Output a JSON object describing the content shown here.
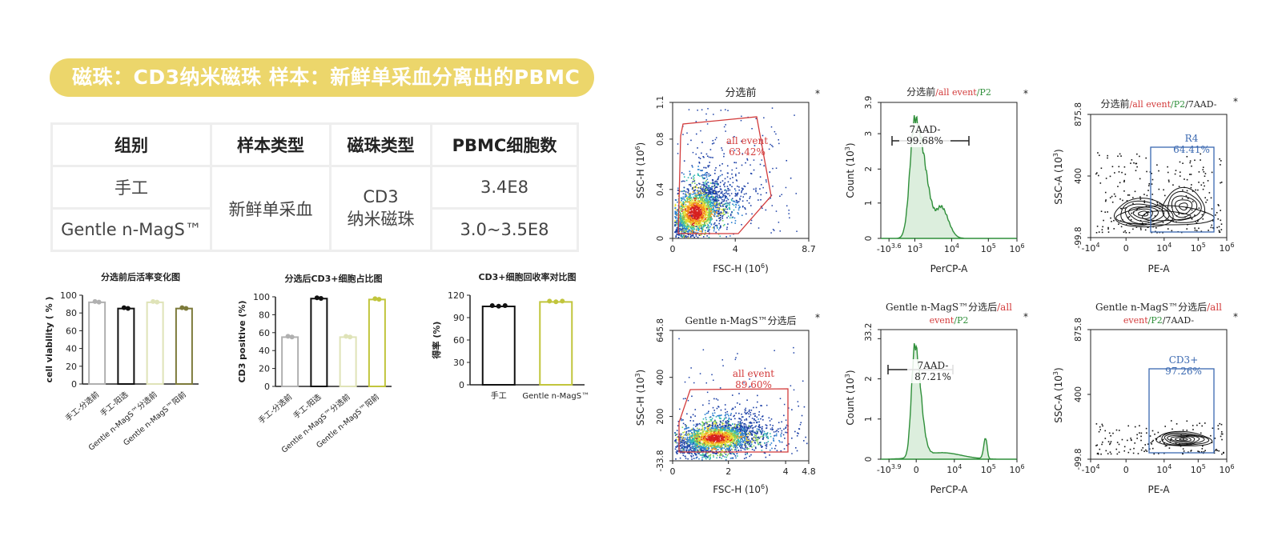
{
  "banner": {
    "text": "磁珠：CD3纳米磁珠   样本：新鲜单采血分离出的PBMC"
  },
  "table": {
    "headers": [
      "组别",
      "样本类型",
      "磁珠类型",
      "PBMC细胞数"
    ],
    "row1_group": "手工",
    "row2_group": "Gentle n-MagS™",
    "sample_type": "新鲜单采血",
    "bead_type_line1": "CD3",
    "bead_type_line2": "纳米磁珠",
    "row1_count": "3.4E8",
    "row2_count": "3.0~3.5E8"
  },
  "colors": {
    "banner": "#ecd66b",
    "red_gate": "#d33b3b",
    "blue_gate": "#3a68b0",
    "green_hist": "#2f8f3a",
    "green_fill": "#dceedd"
  },
  "chart_data": [
    {
      "type": "bar",
      "title": "分选前后活率变化图",
      "ylabel": "cell viability ( % )",
      "ylim": [
        0,
        100
      ],
      "yticks": [
        "0",
        "20",
        "40",
        "60",
        "80",
        "100"
      ],
      "categories": [
        "手工-分选前",
        "手工-阳选",
        "Gentle n-MagS™分选前",
        "Gentle n-MagS™阳前"
      ],
      "values": [
        92,
        85,
        92,
        85
      ],
      "colors": [
        "#b0b0b0",
        "#111111",
        "#dfe3b8",
        "#7c7a3a"
      ]
    },
    {
      "type": "bar",
      "title": "分选后CD3+细胞占比图",
      "ylabel": "CD3 positive (%)",
      "ylim": [
        0,
        100
      ],
      "yticks": [
        "0",
        "20",
        "40",
        "60",
        "80",
        "100"
      ],
      "categories": [
        "手工-分选前",
        "手工-阳选",
        "Gentle n-MagS™分选前",
        "Gentle n-MagS™阳前"
      ],
      "values": [
        55,
        98,
        55,
        97
      ],
      "colors": [
        "#b0b0b0",
        "#111111",
        "#dfe3b8",
        "#c1c53c"
      ]
    },
    {
      "type": "bar",
      "title": "CD3+细胞回收率对比图",
      "ylabel": "得率 (%)",
      "ylim": [
        0,
        120
      ],
      "yticks": [
        "0",
        "30",
        "60",
        "90",
        "120"
      ],
      "categories": [
        "手工",
        "Gentle n-MagS™"
      ],
      "values": [
        105,
        111
      ],
      "colors": [
        "#111111",
        "#c1c53c"
      ]
    },
    {
      "type": "scatter",
      "title": "分选前",
      "xlabel": "FSC-H (10^6)",
      "ylabel": "SSC-H (10^6)",
      "xticks": [
        "0",
        "4",
        "8.7"
      ],
      "yticks": [
        "0",
        "0.4",
        "0.8",
        "1.1"
      ],
      "gate_label": "all event",
      "gate_value": "63.42%"
    },
    {
      "type": "area",
      "title_parts": [
        "分选前",
        "/all event",
        "/P2"
      ],
      "xlabel": "PerCP-A",
      "ylabel": "Count (10^3)",
      "xticks": [
        "-10^3.6",
        "10^3",
        "10^4",
        "10^5",
        "10^6"
      ],
      "yticks": [
        "0",
        "1",
        "2",
        "3",
        "3.9"
      ],
      "gate_label": "7AAD-",
      "gate_value": "99.68%"
    },
    {
      "type": "scatter",
      "title_parts": [
        "分选前",
        "/all event",
        "/P2",
        "/7AAD-"
      ],
      "xlabel": "PE-A",
      "ylabel": "SSC-A (10^3)",
      "xticks": [
        "-10^4",
        "0",
        "10^4",
        "10^5",
        "10^6"
      ],
      "yticks": [
        "-99.8",
        "400",
        "875.8"
      ],
      "gate_label": "R4",
      "gate_value": "64.41%"
    },
    {
      "type": "scatter",
      "title": "Gentle n-MagS™分选后",
      "xlabel": "FSC-H (10^6)",
      "ylabel": "SSC-H (10^3)",
      "xticks": [
        "0",
        "2",
        "4",
        "4.8"
      ],
      "yticks": [
        "-33.8",
        "200",
        "400",
        "645.8"
      ],
      "gate_label": "all event",
      "gate_value": "89.60%"
    },
    {
      "type": "area",
      "title_parts": [
        "Gentle n-MagS™分选后",
        "/all",
        "event",
        "/P2"
      ],
      "xlabel": "PerCP-A",
      "ylabel": "Count (10^3)",
      "xticks": [
        "-10^3.9",
        "0",
        "10^4",
        "10^5",
        "10^6"
      ],
      "yticks": [
        "0",
        "1",
        "2",
        "3",
        "3.2"
      ],
      "gate_label": "7AAD-",
      "gate_value": "87.21%"
    },
    {
      "type": "scatter",
      "title_parts": [
        "Gentle n-MagS™分选后",
        "/all",
        "event",
        "/P2",
        "/7AAD-"
      ],
      "xlabel": "PE-A",
      "ylabel": "SSC-A (10^3)",
      "xticks": [
        "-10^4",
        "0",
        "10^4",
        "10^5",
        "10^6"
      ],
      "yticks": [
        "-99.8",
        "400",
        "875.8"
      ],
      "gate_label": "CD3+",
      "gate_value": "97.26%"
    }
  ]
}
